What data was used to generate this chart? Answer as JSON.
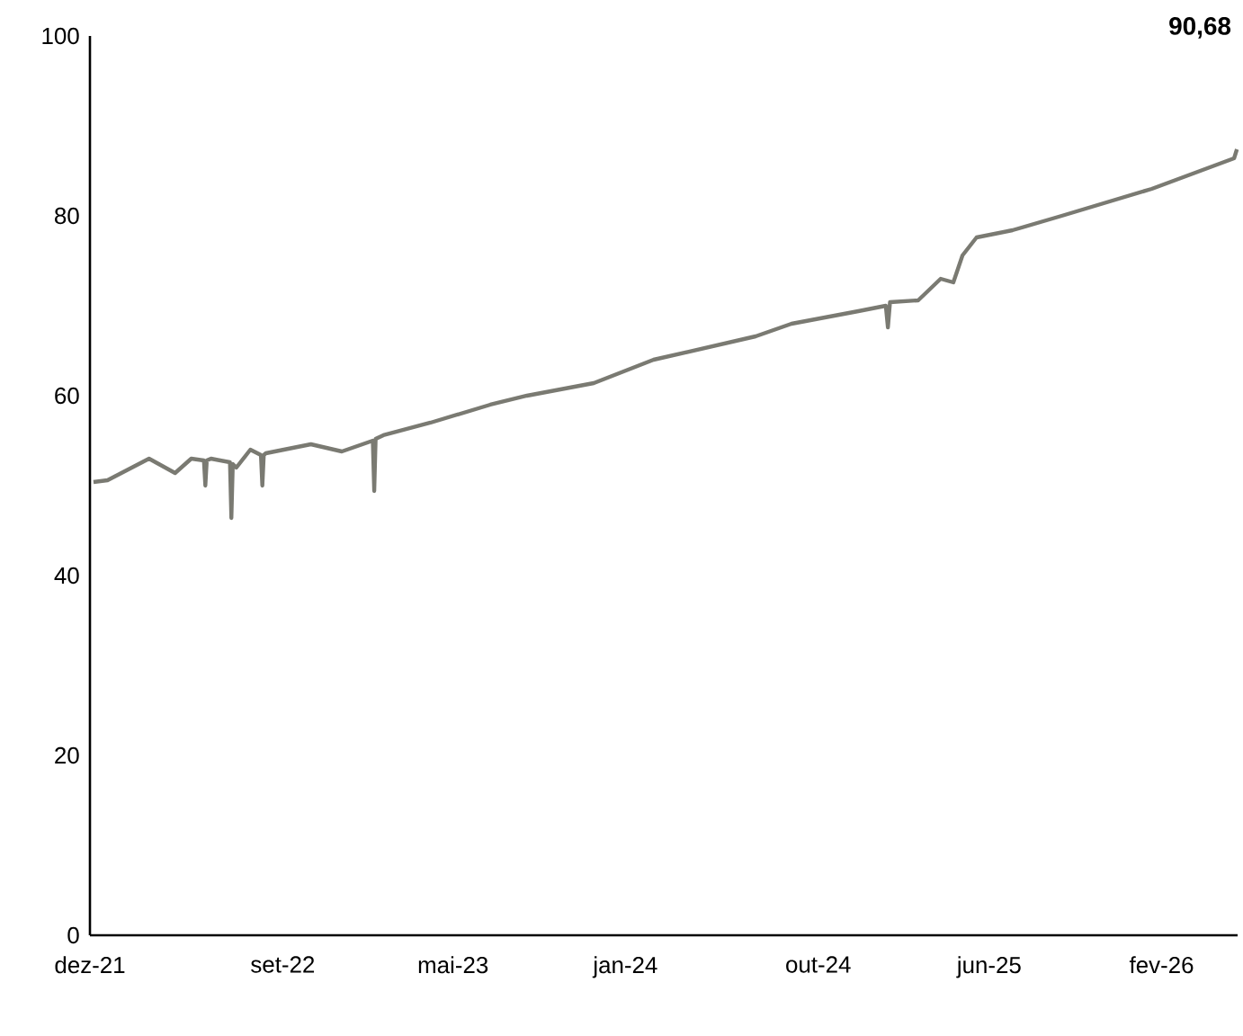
{
  "chart_data": {
    "type": "line",
    "annotations": [
      "90,68"
    ],
    "x": [
      "2021-12-06",
      "2021-12-26",
      "2022-02-23",
      "2022-04-01",
      "2022-04-24",
      "2022-05-12",
      "2022-05-14",
      "2022-05-16",
      "2022-05-22",
      "2022-06-18",
      "2022-06-20",
      "2022-06-22",
      "2022-06-27",
      "2022-07-17",
      "2022-08-01",
      "2022-08-03",
      "2022-08-05",
      "2022-08-08",
      "2022-10-11",
      "2022-11-24",
      "2023-01-07",
      "2023-01-09",
      "2023-01-11",
      "2023-01-22",
      "2023-03-30",
      "2023-06-23",
      "2023-08-14",
      "2023-11-17",
      "2024-02-10",
      "2024-07-04",
      "2024-08-24",
      "2024-11-27",
      "2025-01-05",
      "2025-01-08",
      "2025-01-11",
      "2025-02-20",
      "2025-03-24",
      "2025-04-11",
      "2025-04-24",
      "2025-05-14",
      "2025-07-04",
      "2025-09-12",
      "2026-01-18",
      "2026-05-15",
      "2026-05-19"
    ],
    "series": [
      {
        "color": "#7a7a72",
        "values": [
          50.4,
          50.6,
          53,
          51.4,
          53,
          52.8,
          50,
          52.8,
          53,
          52.6,
          46.4,
          52.4,
          52,
          54,
          53.4,
          50,
          53.4,
          53.6,
          54.6,
          53.8,
          55,
          49.4,
          55.2,
          55.6,
          57,
          59,
          60,
          61.4,
          64,
          66.6,
          68,
          69.4,
          70,
          67.6,
          70.4,
          70.6,
          73,
          72.6,
          75.6,
          77.6,
          78.4,
          80,
          83,
          86.4,
          87.4
        ]
      }
    ],
    "xlim": [
      "2021-12-01",
      "2026-05-20"
    ],
    "xticks": [
      {
        "value": "2021-12-01",
        "label": "dez-21"
      },
      {
        "value": "2022-09-01",
        "label": "set-22"
      },
      {
        "value": "2023-05-01",
        "label": "mai-23"
      },
      {
        "value": "2024-01-01",
        "label": "jan-24"
      },
      {
        "value": "2024-10-01",
        "label": "out-24"
      },
      {
        "value": "2025-06-01",
        "label": "jun-25"
      },
      {
        "value": "2026-02-01",
        "label": "fev-26"
      }
    ],
    "ylim": [
      0,
      100
    ],
    "yticks": [
      0,
      20,
      40,
      60,
      80,
      100
    ],
    "marker": "none",
    "line_style": "solid"
  }
}
